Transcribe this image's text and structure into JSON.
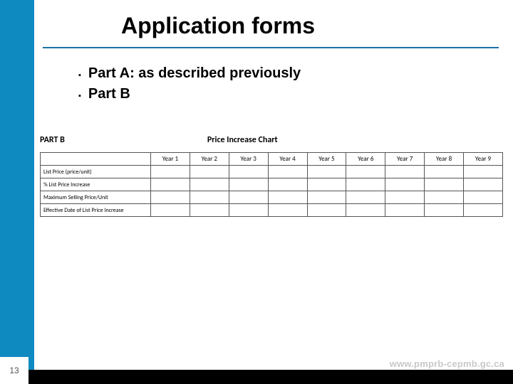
{
  "colors": {
    "sidebar": "#0f8ac1",
    "title_rule": "#1d6fa5",
    "footer_black": "#000000",
    "footer_url": "#c9c9c9",
    "text": "#000000"
  },
  "title": "Application forms",
  "bullets": [
    "Part A: as described previously",
    "Part B"
  ],
  "partb": {
    "table_label": "PART B",
    "chart_title": "Price Increase Chart",
    "columns": [
      "Year 1",
      "Year 2",
      "Year 3",
      "Year 4",
      "Year 5",
      "Year 6",
      "Year 7",
      "Year 8",
      "Year 9"
    ],
    "rows": [
      "List Price (price/unit)",
      "% List Price Increase",
      "Maximum Selling Price/Unit",
      "Effective Date of List Price Increase"
    ]
  },
  "footer": {
    "url": "www.pmprb-cepmb.gc.ca",
    "page_number": "13"
  }
}
